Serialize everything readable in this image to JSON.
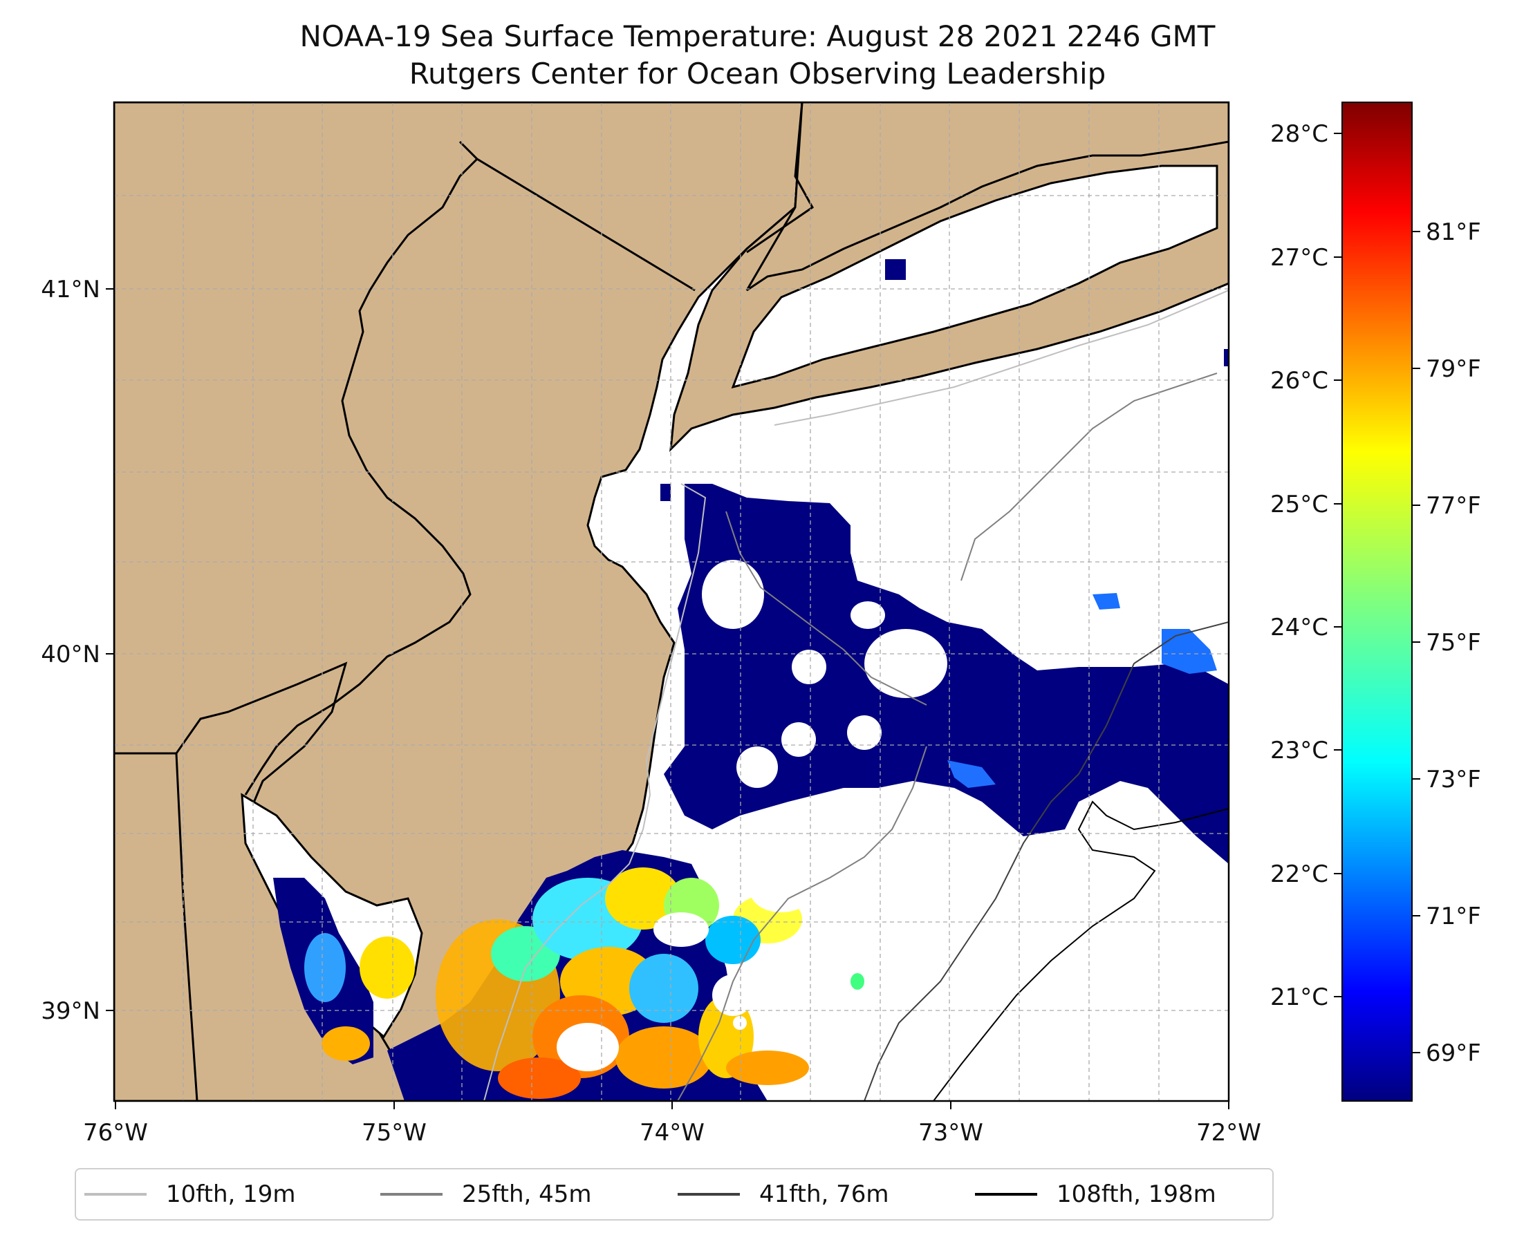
{
  "title": {
    "line1": "NOAA-19 Sea Surface Temperature: August 28 2021 2246 GMT",
    "line2": "Rutgers Center for Ocean Observing Leadership"
  },
  "map": {
    "lon_labels": [
      "76°W",
      "75°W",
      "74°W",
      "73°W",
      "72°W"
    ],
    "lat_labels": [
      "41°N",
      "40°N",
      "39°N"
    ],
    "land_color": "#d2b48c",
    "ocean_color": "#ffffff"
  },
  "colorbar": {
    "celsius_labels": [
      "28°C",
      "27°C",
      "26°C",
      "25°C",
      "24°C",
      "23°C",
      "22°C",
      "21°C"
    ],
    "fahrenheit_labels": [
      "81°F",
      "79°F",
      "77°F",
      "75°F",
      "73°F",
      "71°F",
      "69°F"
    ],
    "colormap": "jet"
  },
  "legend": {
    "items": [
      {
        "label": "10fth, 19m",
        "color": "#bfbfbf"
      },
      {
        "label": "25fth, 45m",
        "color": "#808080"
      },
      {
        "label": "41fth, 76m",
        "color": "#404040"
      },
      {
        "label": "108fth, 198m",
        "color": "#000000"
      }
    ]
  }
}
